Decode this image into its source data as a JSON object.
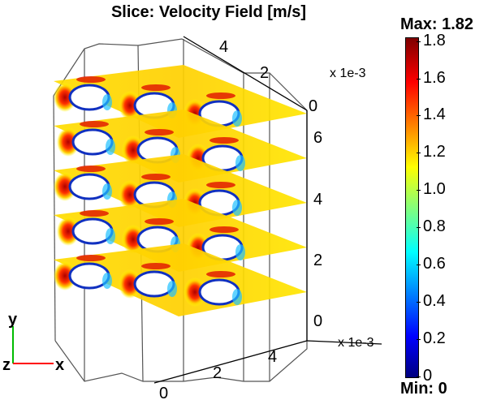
{
  "chart_data": {
    "type": "slice",
    "title": "Slice: Velocity Field [m/s]",
    "axes": {
      "vertical": {
        "label": "y",
        "ticks": [
          "0",
          "2",
          "4",
          "6"
        ],
        "multiplier": "x 1e-3"
      },
      "depth": {
        "label": "z",
        "ticks": [
          "0",
          "2",
          "4"
        ],
        "multiplier": "x 1e-3"
      },
      "horizontal": {
        "label": "x",
        "ticks": [
          "0",
          "2",
          "4"
        ]
      }
    },
    "colorbar": {
      "max_label": "Max: 1.82",
      "min_label": "Min: 0",
      "ticks": [
        "0",
        "0.2",
        "0.4",
        "0.6",
        "0.8",
        "1.0",
        "1.2",
        "1.4",
        "1.6",
        "1.8"
      ],
      "range": [
        0,
        1.82
      ],
      "colors": [
        "#00007f",
        "#0000ff",
        "#00ffff",
        "#ffff00",
        "#ff0000",
        "#7f0000"
      ]
    },
    "slices": 5
  }
}
